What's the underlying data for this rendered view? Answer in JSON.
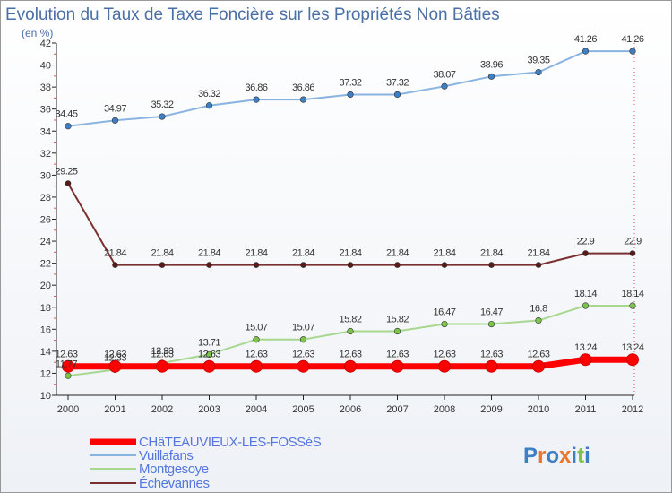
{
  "chart_data": {
    "type": "line",
    "title": "Evolution du Taux de Taxe Foncière sur les Propriétés Non Bâties",
    "subtitle": "(en %)",
    "xlabel": "",
    "ylabel": "",
    "x": [
      "2000",
      "2001",
      "2002",
      "2003",
      "2004",
      "2005",
      "2006",
      "2007",
      "2008",
      "2009",
      "2010",
      "2011",
      "2012"
    ],
    "ylim": [
      10,
      42
    ],
    "yticks": [
      "10",
      "12",
      "14",
      "16",
      "18",
      "20",
      "22",
      "24",
      "26",
      "28",
      "30",
      "32",
      "34",
      "36",
      "38",
      "40",
      "42"
    ],
    "grid": false,
    "legend_position": "bottom-left",
    "series": [
      {
        "name": "Vuillafans",
        "color": "#8ab4e0",
        "marker": "#3d7fc4",
        "values": [
          34.45,
          34.97,
          35.32,
          36.32,
          36.86,
          36.86,
          37.32,
          37.32,
          38.07,
          38.96,
          39.35,
          41.26,
          41.26
        ],
        "labels": [
          "34.45",
          "34.97",
          "35.32",
          "36.32",
          "36.86",
          "36.86",
          "37.32",
          "37.32",
          "38.07",
          "38.96",
          "39.35",
          "41.26",
          "41.26"
        ]
      },
      {
        "name": "Échevannes",
        "color": "#7a3030",
        "marker": "#5a1a1a",
        "values": [
          29.25,
          21.84,
          21.84,
          21.84,
          21.84,
          21.84,
          21.84,
          21.84,
          21.84,
          21.84,
          21.84,
          22.9,
          22.9
        ],
        "labels": [
          "29.25",
          "21.84",
          "21.84",
          "21.84",
          "21.84",
          "21.84",
          "21.84",
          "21.84",
          "21.84",
          "21.84",
          "21.84",
          "22.9",
          "22.9"
        ]
      },
      {
        "name": "Montgesoye",
        "color": "#a8d890",
        "marker": "#7cc44a",
        "values": [
          11.77,
          12.33,
          12.93,
          13.71,
          15.07,
          15.07,
          15.82,
          15.82,
          16.47,
          16.47,
          16.8,
          18.14,
          18.14
        ],
        "labels": [
          "11.77",
          "12.33",
          "12.93",
          "13.71",
          "15.07",
          "15.07",
          "15.82",
          "15.82",
          "16.47",
          "16.47",
          "16.8",
          "18.14",
          "18.14"
        ]
      },
      {
        "name": "CHâTEAUVIEUX-LES-FOSSéS",
        "color": "#ff0000",
        "marker": "#ff0000",
        "values": [
          12.63,
          12.63,
          12.63,
          12.63,
          12.63,
          12.63,
          12.63,
          12.63,
          12.63,
          12.63,
          12.63,
          13.24,
          13.24
        ],
        "labels": [
          "12.63",
          "12.63",
          "12.63",
          "12.63",
          "12.63",
          "12.63",
          "12.63",
          "12.63",
          "12.63",
          "12.63",
          "12.63",
          "13.24",
          "13.24"
        ]
      }
    ],
    "legend": [
      {
        "name": "CHâTEAUVIEUX-LES-FOSSéS",
        "color": "#ff0000"
      },
      {
        "name": "Vuillafans",
        "color": "#8ab4e0"
      },
      {
        "name": "Montgesoye",
        "color": "#a8d890"
      },
      {
        "name": "Échevannes",
        "color": "#7a3030"
      }
    ],
    "legend_text_color": "#5577dd"
  },
  "logo": {
    "text": "Proxiti",
    "colors": [
      "#3d7fc4",
      "#e8762c",
      "#3d7fc4",
      "#e8762c",
      "#3d7fc4",
      "#7cc44a",
      "#3d7fc4"
    ]
  }
}
